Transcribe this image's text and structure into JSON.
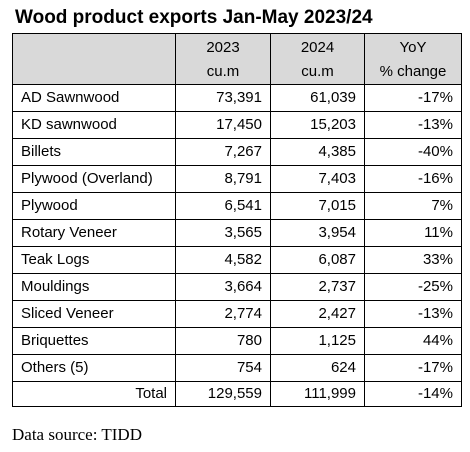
{
  "title": "Wood product exports Jan-May 2023/24",
  "header": {
    "col_2023": "2023",
    "col_2024": "2024",
    "col_yoy": "YoY",
    "unit_2023": "cu.m",
    "unit_2024": "cu.m",
    "unit_yoy": "% change"
  },
  "rows": [
    {
      "product": "AD Sawnwood",
      "v2023": "73,391",
      "v2024": "61,039",
      "yoy": "-17%"
    },
    {
      "product": "KD sawnwood",
      "v2023": "17,450",
      "v2024": "15,203",
      "yoy": "-13%"
    },
    {
      "product": "Billets",
      "v2023": "7,267",
      "v2024": "4,385",
      "yoy": "-40%"
    },
    {
      "product": "Plywood (Overland)",
      "v2023": "8,791",
      "v2024": "7,403",
      "yoy": "-16%"
    },
    {
      "product": "Plywood",
      "v2023": "6,541",
      "v2024": "7,015",
      "yoy": "7%"
    },
    {
      "product": "Rotary Veneer",
      "v2023": "3,565",
      "v2024": "3,954",
      "yoy": "11%"
    },
    {
      "product": "Teak Logs",
      "v2023": "4,582",
      "v2024": "6,087",
      "yoy": "33%"
    },
    {
      "product": "Mouldings",
      "v2023": "3,664",
      "v2024": "2,737",
      "yoy": "-25%"
    },
    {
      "product": "Sliced Veneer",
      "v2023": "2,774",
      "v2024": "2,427",
      "yoy": "-13%"
    },
    {
      "product": "Briquettes",
      "v2023": "780",
      "v2024": "1,125",
      "yoy": "44%"
    },
    {
      "product": "Others (5)",
      "v2023": "754",
      "v2024": "624",
      "yoy": "-17%"
    }
  ],
  "total": {
    "label": "Total",
    "v2023": "129,559",
    "v2024": "111,999",
    "yoy": "-14%"
  },
  "source": "Data source: TIDD",
  "colors": {
    "header_bg": "#d9d9d9",
    "border": "#000000",
    "text": "#000000"
  }
}
